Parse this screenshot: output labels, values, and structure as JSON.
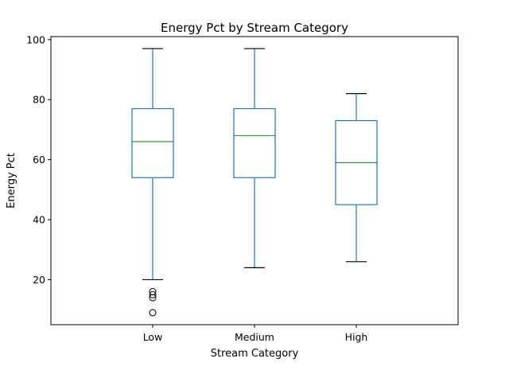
{
  "chart_data": {
    "type": "box",
    "title": "Energy Pct by Stream Category",
    "xlabel": "Stream Category",
    "ylabel": "Energy Pct",
    "categories": [
      "Low",
      "Medium",
      "High"
    ],
    "ylim": [
      5,
      101
    ],
    "yticks": [
      20,
      40,
      60,
      80,
      100
    ],
    "grid": false,
    "boxes": [
      {
        "category": "Low",
        "whisker_low": 20,
        "q1": 54,
        "median": 66,
        "q3": 77,
        "whisker_high": 97,
        "outliers": [
          16,
          15,
          14,
          9
        ]
      },
      {
        "category": "Medium",
        "whisker_low": 24,
        "q1": 54,
        "median": 68,
        "q3": 77,
        "whisker_high": 97,
        "outliers": []
      },
      {
        "category": "High",
        "whisker_low": 26,
        "q1": 45,
        "median": 59,
        "q3": 73,
        "whisker_high": 82,
        "outliers": []
      }
    ],
    "colors": {
      "box": "#1f77b4",
      "median": "#2ca02c",
      "cap": "#000000",
      "outlier": "#000000",
      "axes": "#000000"
    }
  }
}
